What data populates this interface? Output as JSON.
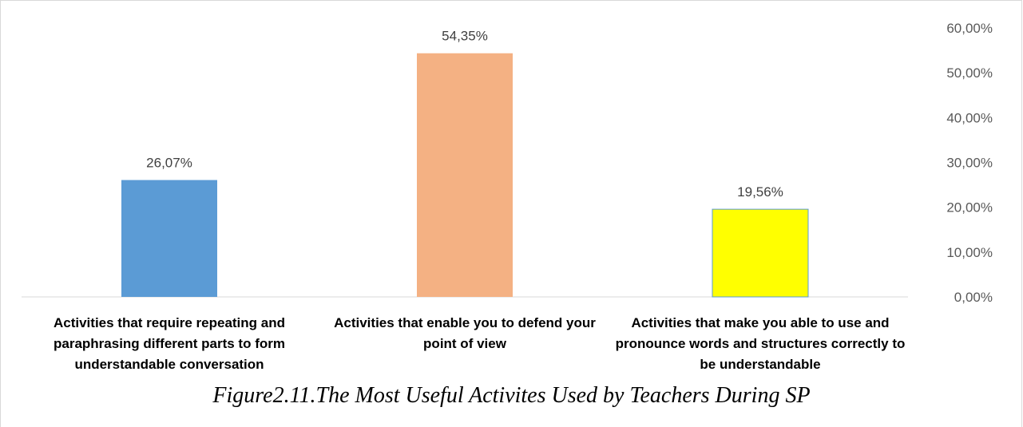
{
  "chart_data": {
    "type": "bar",
    "categories": [
      "Activities that require repeating and paraphrasing different parts to form understandable conversation",
      "Activities that enable you to defend your point of view",
      "Activities that make you able to use and pronounce words and structures correctly to be understandable"
    ],
    "values": [
      26.07,
      54.35,
      19.56
    ],
    "data_labels": [
      "26,07%",
      "54,35%",
      "19,56%"
    ],
    "colors": [
      "#5b9bd5",
      "#f4b183",
      "#ffff00"
    ],
    "ylim": [
      0,
      60
    ],
    "yticks": [
      0,
      10,
      20,
      30,
      40,
      50,
      60
    ],
    "ytick_labels": [
      "0,00%",
      "10,00%",
      "20,00%",
      "30,00%",
      "40,00%",
      "50,00%",
      "60,00%"
    ],
    "y_axis_position": "right",
    "grid": false,
    "legend": "none"
  },
  "caption": "Figure2.11.The Most Useful Activites Used by Teachers During SP"
}
